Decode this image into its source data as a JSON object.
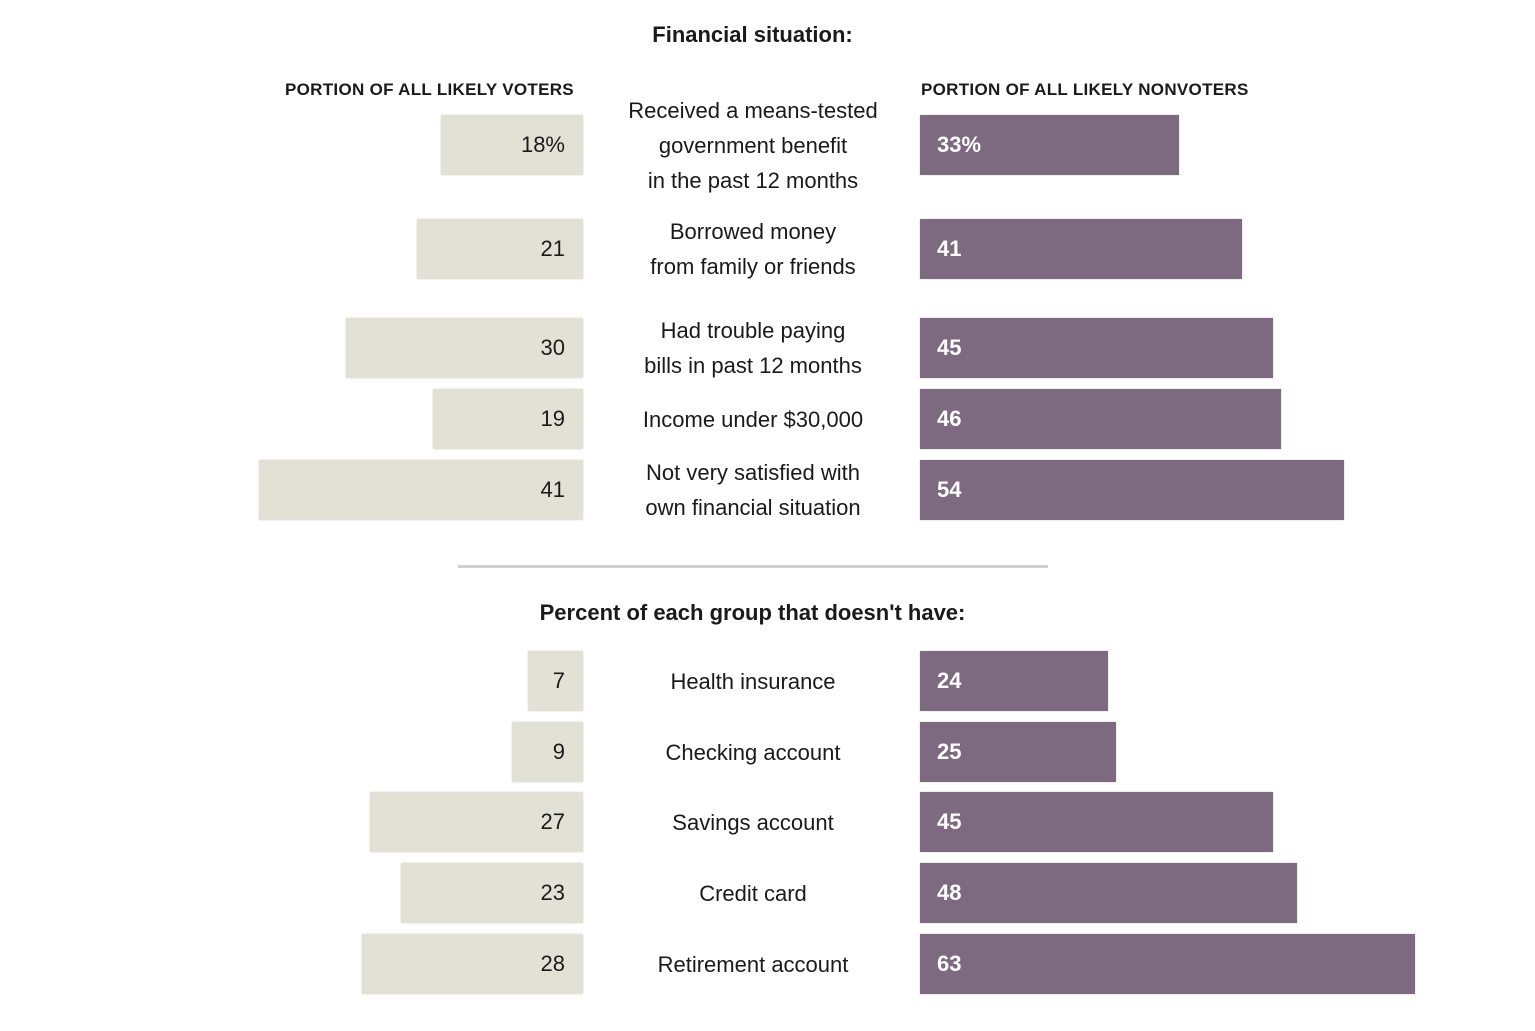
{
  "chart_data": [
    {
      "type": "bar",
      "title": "Financial situation:",
      "left_header": "PORTION OF ALL LIKELY VOTERS",
      "right_header": "PORTION OF ALL LIKELY NONVOTERS",
      "categories": [
        "Received a means-tested\ngovernment benefit\nin the past 12 months",
        "Borrowed money\nfrom family or friends",
        "Had trouble paying\nbills in past 12 months",
        "Income under $30,000",
        "Not very satisfied with\nown financial situation"
      ],
      "series": [
        {
          "name": "PORTION OF ALL LIKELY VOTERS",
          "values": [
            18,
            21,
            30,
            19,
            41
          ],
          "labels": [
            "18%",
            "21",
            "30",
            "19",
            "41"
          ]
        },
        {
          "name": "PORTION OF ALL LIKELY NONVOTERS",
          "values": [
            33,
            41,
            45,
            46,
            54
          ],
          "labels": [
            "33%",
            "41",
            "45",
            "46",
            "54"
          ]
        }
      ],
      "colors": {
        "voters": "#e3e1d6",
        "nonvoters": "#7d6980"
      }
    },
    {
      "type": "bar",
      "title": "Percent of each group that doesn't have:",
      "categories": [
        "Health insurance",
        "Checking account",
        "Savings account",
        "Credit card",
        "Retirement account"
      ],
      "series": [
        {
          "name": "PORTION OF ALL LIKELY VOTERS",
          "values": [
            7,
            9,
            27,
            23,
            28
          ],
          "labels": [
            "7",
            "9",
            "27",
            "23",
            "28"
          ]
        },
        {
          "name": "PORTION OF ALL LIKELY NONVOTERS",
          "values": [
            24,
            25,
            45,
            48,
            63
          ],
          "labels": [
            "24",
            "25",
            "45",
            "48",
            "63"
          ]
        }
      ],
      "colors": {
        "voters": "#e3e1d6",
        "nonvoters": "#7d6980"
      }
    }
  ]
}
